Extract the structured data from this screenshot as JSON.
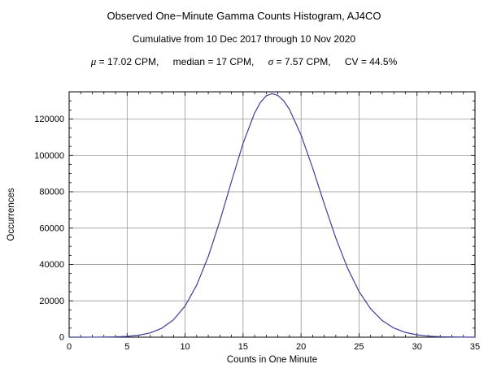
{
  "header": {
    "title": "Observed One−Minute Gamma Counts Histogram, AJ4CO",
    "subtitle": "Cumulative from 10 Dec 2017 through 10 Nov 2020"
  },
  "stats": {
    "mu_symbol": "μ",
    "mu_rest": " = 17.02 CPM,",
    "median_part": "median = 17 CPM,",
    "sigma_symbol": "σ",
    "sigma_rest": " = 7.57 CPM,",
    "cv_part": "CV = 44.5%"
  },
  "chart_data": {
    "type": "line",
    "title": "Observed One−Minute Gamma Counts Histogram, AJ4CO",
    "xlabel": "Counts in One Minute",
    "ylabel": "Occurrences",
    "xlim": [
      0,
      35
    ],
    "ylim": [
      0,
      135000
    ],
    "x_ticks": [
      0,
      5,
      10,
      15,
      20,
      25,
      30,
      35
    ],
    "y_ticks": [
      0,
      20000,
      40000,
      60000,
      80000,
      100000,
      120000
    ],
    "x_minor_step": 1,
    "y_minor_step": 5000,
    "grid": true,
    "line_color": "#3e3d99",
    "grid_color": "#8a8a8a",
    "frame_color": "#000000",
    "x": [
      0,
      1,
      2,
      3,
      4,
      5,
      6,
      7,
      8,
      9,
      10,
      11,
      12,
      13,
      14,
      15,
      16,
      16.5,
      17,
      17.5,
      18,
      18.5,
      19,
      20,
      21,
      22,
      23,
      24,
      25,
      26,
      27,
      28,
      29,
      30,
      31,
      32,
      33,
      34,
      35
    ],
    "y": [
      2,
      6,
      21,
      62,
      172,
      445,
      1069,
      2390,
      4968,
      9574,
      17180,
      28636,
      44394,
      63958,
      85666,
      106650,
      123427,
      129192,
      132782,
      134000,
      133007,
      130073,
      125329,
      111269,
      93077,
      73377,
      54495,
      38135,
      25155,
      15630,
      9149,
      5047,
      2622,
      1287,
      592,
      258,
      106,
      41,
      15
    ]
  }
}
